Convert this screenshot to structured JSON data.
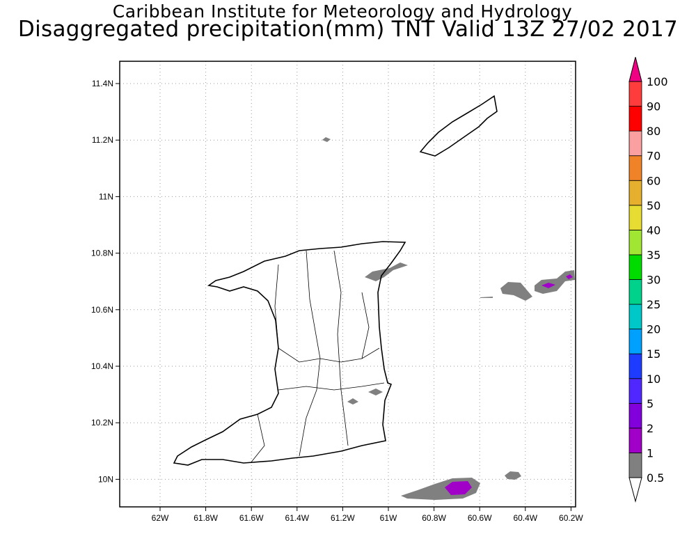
{
  "header": {
    "title_line1": "Caribbean Institute for Meteorology and Hydrology",
    "title_line2": "Disaggregated precipitation(mm) TNT Valid 13Z 27/02 2017"
  },
  "map": {
    "x_ticks": [
      "62W",
      "61.8W",
      "61.6W",
      "61.4W",
      "61.2W",
      "61W",
      "60.8W",
      "60.6W",
      "60.4W",
      "60.2W"
    ],
    "y_ticks": [
      "11.4N",
      "11.2N",
      "11N",
      "10.8N",
      "10.6N",
      "10.4N",
      "10.2N",
      "10N"
    ],
    "precip_areas": [
      {
        "region": "near 61.25W 11.2N",
        "class": "0.5-1"
      },
      {
        "region": "NE Trinidad coast",
        "class": "0.5-1"
      },
      {
        "region": "east of Trinidad 60.3W 10.7N",
        "class": "1-2 core"
      },
      {
        "region": "south-east sea 60.7W 10N",
        "class": "1-2 core"
      }
    ]
  },
  "colorbar": {
    "labels": [
      "0.5",
      "1",
      "2",
      "5",
      "10",
      "15",
      "20",
      "25",
      "30",
      "35",
      "40",
      "50",
      "60",
      "70",
      "80",
      "90",
      "100"
    ],
    "colors": [
      "#808080",
      "#a000c8",
      "#8200dc",
      "#5028ff",
      "#1e3cff",
      "#00a0ff",
      "#00c8c8",
      "#00d28c",
      "#00dc00",
      "#a0e632",
      "#e6dc32",
      "#e6af2d",
      "#f08228",
      "#faa0a0",
      "#ff0000",
      "#ff3c3c"
    ],
    "under_color": "#ffffff",
    "over_color": "#f00082"
  }
}
